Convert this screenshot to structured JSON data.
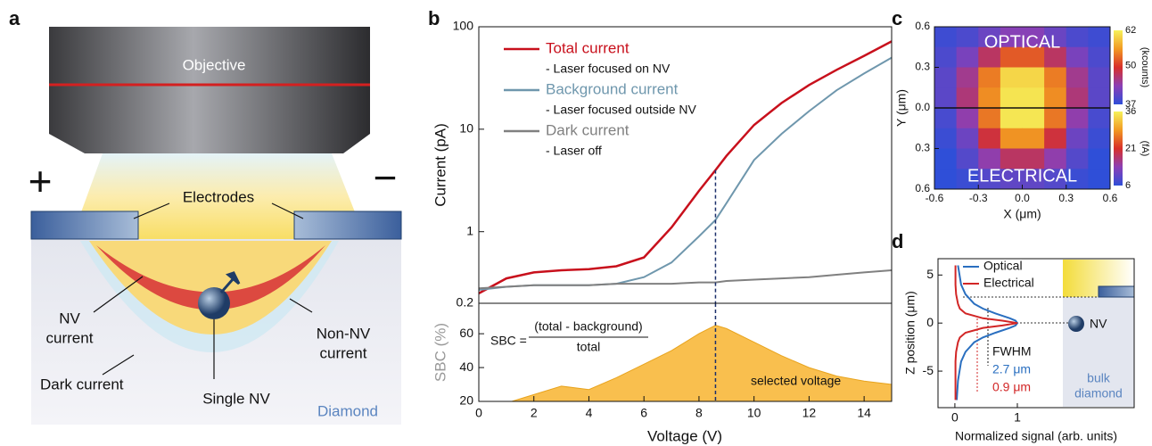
{
  "diagram": {
    "panel_label": "a",
    "objective": "Objective",
    "electrodes": "Electrodes",
    "plus": "+",
    "minus": "−",
    "nv_current": [
      "NV",
      "current"
    ],
    "non_nv_current": [
      "Non-NV",
      "current"
    ],
    "dark_current": "Dark current",
    "single_nv": "Single NV",
    "diamond": "Diamond"
  },
  "chart_data": [
    {
      "type": "line",
      "panel_label": "b",
      "y_label": "Current (pA)",
      "log_y": true,
      "x": [
        0,
        1,
        2,
        3,
        4,
        5,
        6,
        7,
        8,
        8.6,
        9,
        10,
        11,
        12,
        13,
        14,
        15
      ],
      "series": [
        {
          "name": "Total current",
          "note": "- Laser focused on NV",
          "color": "#c8101c",
          "values": [
            0.25,
            0.35,
            0.4,
            0.42,
            0.43,
            0.46,
            0.56,
            1.1,
            2.5,
            4,
            5.5,
            11,
            18,
            27,
            38,
            52,
            72
          ]
        },
        {
          "name": "Background current",
          "note": "- Laser focused outside NV",
          "color": "#6f97ad",
          "values": [
            0.27,
            0.29,
            0.3,
            0.3,
            0.3,
            0.31,
            0.36,
            0.5,
            0.9,
            1.3,
            1.9,
            5,
            9,
            15,
            24,
            35,
            50
          ]
        },
        {
          "name": "Dark current",
          "note": "- Laser off",
          "color": "#808080",
          "values": [
            0.28,
            0.29,
            0.3,
            0.3,
            0.3,
            0.31,
            0.31,
            0.31,
            0.32,
            0.32,
            0.33,
            0.34,
            0.35,
            0.36,
            0.38,
            0.4,
            0.42
          ]
        }
      ],
      "xlim": [
        0,
        15
      ],
      "ylim": [
        0.2,
        100
      ],
      "yticks": [
        0.2,
        1,
        10,
        100
      ],
      "marker_x": 8.6
    },
    {
      "type": "area",
      "y_label": "SBC (%)",
      "x_label": "Voltage (V)",
      "x": [
        1.2,
        2,
        3,
        4,
        5,
        6,
        7,
        8,
        8.6,
        9,
        10,
        11,
        12,
        13,
        14,
        15
      ],
      "values": [
        20,
        24,
        29,
        27,
        34,
        42,
        50,
        60,
        65,
        63,
        55,
        47,
        40,
        35,
        32,
        30
      ],
      "color": "#f9bf4e",
      "xlim": [
        0,
        15
      ],
      "xticks": [
        0,
        2,
        4,
        6,
        8,
        10,
        12,
        14
      ],
      "ylim": [
        20,
        78
      ],
      "yticks": [
        20,
        40,
        60
      ],
      "marker_x": 8.6,
      "annotation": "selected voltage",
      "formula": {
        "lhs": "SBC =",
        "numerator": "(total - background)",
        "denominator": "total"
      }
    },
    {
      "type": "heatmap",
      "panel_label": "c",
      "x_label": "X (μm)",
      "y_label": "Y (μm)",
      "xlim": [
        -0.6,
        0.6
      ],
      "xticks": [
        -0.6,
        -0.3,
        {
          "value": 0,
          "label": "0.0"
        },
        0.3,
        0.6
      ],
      "ylim": [
        -0.6,
        0.6
      ],
      "yticks": [
        0.6,
        0.3,
        {
          "value": 0,
          "label": "0.0"
        },
        {
          "value": -0.3,
          "label": "0.3"
        },
        {
          "value": -0.6,
          "label": "0.6"
        }
      ],
      "colormap": [
        "#2f4fd8",
        "#8b3fb5",
        "#d8302a",
        "#f29a22",
        "#f6f25a"
      ],
      "maps": [
        {
          "name": "OPTICAL",
          "unit": "(kcounts)",
          "range": [
            37,
            62
          ],
          "ticks": [
            37,
            50,
            62
          ],
          "rows": [
            [
              38,
              39,
              41,
              43,
              43,
              41,
              39,
              38
            ],
            [
              39,
              42,
              47,
              52,
              52,
              47,
              42,
              39
            ],
            [
              40,
              45,
              54,
              60,
              60,
              54,
              45,
              40
            ],
            [
              40,
              46,
              55,
              61,
              61,
              55,
              46,
              40
            ]
          ]
        },
        {
          "name": "ELECTRICAL",
          "unit": "(fA)",
          "range": [
            6,
            36
          ],
          "ticks": [
            6,
            21,
            36
          ],
          "rows": [
            [
              8,
              14,
              26,
              35,
              35,
              26,
              14,
              8
            ],
            [
              7,
              11,
              20,
              28,
              28,
              20,
              11,
              7
            ],
            [
              6,
              9,
              14,
              18,
              18,
              14,
              9,
              6
            ],
            [
              6,
              7,
              9,
              10,
              10,
              9,
              7,
              6
            ]
          ]
        }
      ]
    },
    {
      "type": "line",
      "panel_label": "d",
      "x_label": "Normalized signal (arb. units)",
      "y_label": "Z position (μm)",
      "y": [
        -8,
        -6,
        -4,
        -3,
        -2,
        -1.5,
        -1,
        -0.5,
        -0.25,
        0,
        0.25,
        0.5,
        1,
        1.5,
        2,
        3,
        4,
        6
      ],
      "series": [
        {
          "name": "Optical",
          "color": "#2a6fc0",
          "values": [
            0.03,
            0.05,
            0.1,
            0.17,
            0.31,
            0.45,
            0.65,
            0.88,
            0.97,
            1,
            0.97,
            0.88,
            0.65,
            0.45,
            0.31,
            0.17,
            0.1,
            0.05
          ]
        },
        {
          "name": "Electrical",
          "color": "#d22626",
          "values": [
            0.01,
            0.01,
            0.01,
            0.02,
            0.05,
            0.08,
            0.17,
            0.45,
            0.76,
            1,
            0.76,
            0.45,
            0.17,
            0.08,
            0.05,
            0.02,
            0.01,
            0.01
          ]
        }
      ],
      "xlim": [
        -0.27,
        2.87
      ],
      "xticks": [
        0,
        1
      ],
      "ylim": [
        -8.8,
        6.7
      ],
      "yticks": [
        -5,
        0,
        5
      ],
      "annotations": {
        "fwhm": "FWHM",
        "optical_fwhm": "2.7 μm",
        "electrical_fwhm": "0.9 μm",
        "nv": "NV",
        "bulk": [
          "bulk",
          "diamond"
        ]
      }
    }
  ]
}
